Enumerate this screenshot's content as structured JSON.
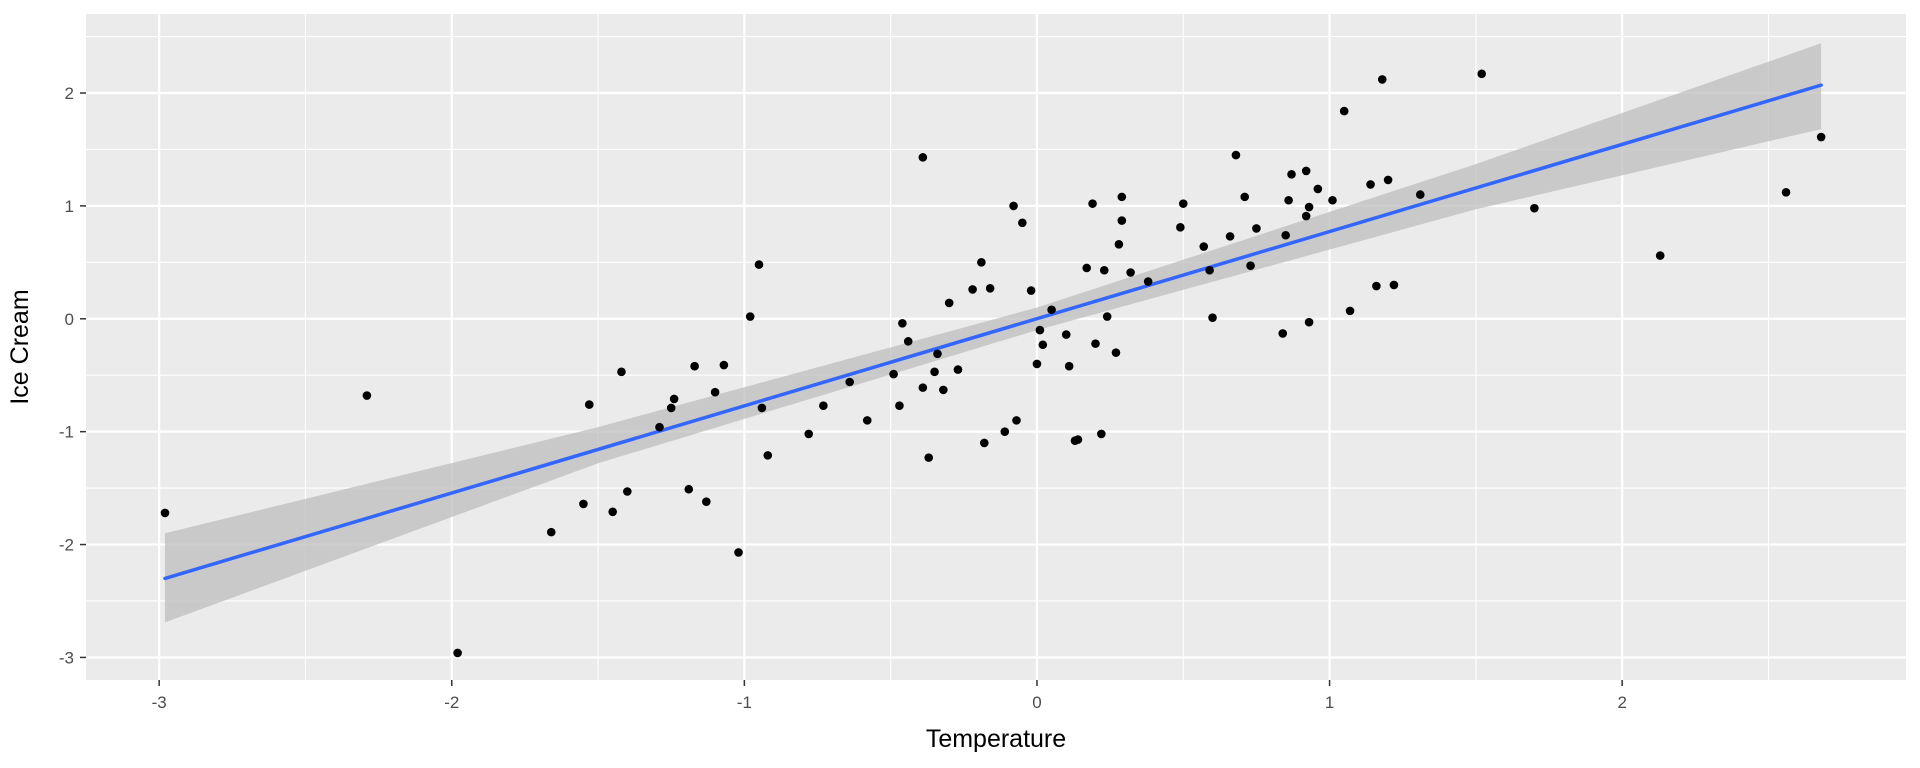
{
  "chart_data": {
    "type": "scatter",
    "title": "",
    "xlabel": "Temperature",
    "ylabel": "Ice Cream",
    "xlim": [
      -3.25,
      2.97
    ],
    "ylim": [
      -3.2,
      2.7
    ],
    "x_ticks": [
      -3,
      -2,
      -1,
      0,
      1,
      2
    ],
    "y_ticks": [
      -3,
      -2,
      -1,
      0,
      1,
      2
    ],
    "x_tick_labels": [
      "-3",
      "-2",
      "-1",
      "0",
      "1",
      "2"
    ],
    "y_tick_labels": [
      "-3",
      "-2",
      "-1",
      "0",
      "1",
      "2"
    ],
    "grid": true,
    "legend": "none",
    "colors": {
      "panel_background": "#ebebeb",
      "grid": "#ffffff",
      "points": "#000000",
      "fit_line": "#3366ff",
      "confidence_band": "#bdbdbd"
    },
    "fit": {
      "method": "linear",
      "x": [
        -2.98,
        2.68
      ],
      "y": [
        -2.3,
        2.07
      ],
      "band": [
        {
          "x": -2.98,
          "lower": -2.69,
          "upper": -1.9
        },
        {
          "x": -1.5,
          "lower": -1.28,
          "upper": -0.96
        },
        {
          "x": 0.0,
          "lower": -0.1,
          "upper": 0.1
        },
        {
          "x": 1.5,
          "lower": 0.97,
          "upper": 1.37
        },
        {
          "x": 2.68,
          "lower": 1.68,
          "upper": 2.44
        }
      ]
    },
    "points": [
      {
        "x": -2.98,
        "y": -1.72
      },
      {
        "x": -2.29,
        "y": -0.68
      },
      {
        "x": -1.98,
        "y": -2.96
      },
      {
        "x": -1.66,
        "y": -1.89
      },
      {
        "x": -1.55,
        "y": -1.64
      },
      {
        "x": -1.53,
        "y": -0.76
      },
      {
        "x": -1.45,
        "y": -1.71
      },
      {
        "x": -1.42,
        "y": -0.47
      },
      {
        "x": -1.4,
        "y": -1.53
      },
      {
        "x": -1.29,
        "y": -0.96
      },
      {
        "x": -1.25,
        "y": -0.79
      },
      {
        "x": -1.24,
        "y": -0.71
      },
      {
        "x": -1.19,
        "y": -1.51
      },
      {
        "x": -1.17,
        "y": -0.42
      },
      {
        "x": -1.13,
        "y": -1.62
      },
      {
        "x": -1.1,
        "y": -0.65
      },
      {
        "x": -1.07,
        "y": -0.41
      },
      {
        "x": -1.02,
        "y": -2.07
      },
      {
        "x": -0.98,
        "y": 0.02
      },
      {
        "x": -0.95,
        "y": 0.48
      },
      {
        "x": -0.94,
        "y": -0.79
      },
      {
        "x": -0.92,
        "y": -1.21
      },
      {
        "x": -0.78,
        "y": -1.02
      },
      {
        "x": -0.73,
        "y": -0.77
      },
      {
        "x": -0.64,
        "y": -0.56
      },
      {
        "x": -0.58,
        "y": -0.9
      },
      {
        "x": -0.49,
        "y": -0.49
      },
      {
        "x": -0.47,
        "y": -0.77
      },
      {
        "x": -0.46,
        "y": -0.04
      },
      {
        "x": -0.44,
        "y": -0.2
      },
      {
        "x": -0.39,
        "y": 1.43
      },
      {
        "x": -0.39,
        "y": -0.61
      },
      {
        "x": -0.37,
        "y": -1.23
      },
      {
        "x": -0.35,
        "y": -0.47
      },
      {
        "x": -0.34,
        "y": -0.31
      },
      {
        "x": -0.32,
        "y": -0.63
      },
      {
        "x": -0.3,
        "y": 0.14
      },
      {
        "x": -0.27,
        "y": -0.45
      },
      {
        "x": -0.22,
        "y": 0.26
      },
      {
        "x": -0.19,
        "y": 0.5
      },
      {
        "x": -0.18,
        "y": -1.1
      },
      {
        "x": -0.16,
        "y": 0.27
      },
      {
        "x": -0.11,
        "y": -1.0
      },
      {
        "x": -0.08,
        "y": 1.0
      },
      {
        "x": -0.07,
        "y": -0.9
      },
      {
        "x": -0.05,
        "y": 0.85
      },
      {
        "x": -0.02,
        "y": 0.25
      },
      {
        "x": 0.0,
        "y": -0.4
      },
      {
        "x": 0.01,
        "y": -0.1
      },
      {
        "x": 0.02,
        "y": -0.23
      },
      {
        "x": 0.05,
        "y": 0.08
      },
      {
        "x": 0.1,
        "y": -0.14
      },
      {
        "x": 0.11,
        "y": -0.42
      },
      {
        "x": 0.13,
        "y": -1.08
      },
      {
        "x": 0.14,
        "y": -1.07
      },
      {
        "x": 0.17,
        "y": 0.45
      },
      {
        "x": 0.19,
        "y": 1.02
      },
      {
        "x": 0.2,
        "y": -0.22
      },
      {
        "x": 0.22,
        "y": -1.02
      },
      {
        "x": 0.23,
        "y": 0.43
      },
      {
        "x": 0.24,
        "y": 0.02
      },
      {
        "x": 0.27,
        "y": -0.3
      },
      {
        "x": 0.28,
        "y": 0.66
      },
      {
        "x": 0.29,
        "y": 0.87
      },
      {
        "x": 0.29,
        "y": 1.08
      },
      {
        "x": 0.32,
        "y": 0.41
      },
      {
        "x": 0.38,
        "y": 0.33
      },
      {
        "x": 0.49,
        "y": 0.81
      },
      {
        "x": 0.5,
        "y": 1.02
      },
      {
        "x": 0.57,
        "y": 0.64
      },
      {
        "x": 0.59,
        "y": 0.43
      },
      {
        "x": 0.6,
        "y": 0.01
      },
      {
        "x": 0.66,
        "y": 0.73
      },
      {
        "x": 0.68,
        "y": 1.45
      },
      {
        "x": 0.71,
        "y": 1.08
      },
      {
        "x": 0.73,
        "y": 0.47
      },
      {
        "x": 0.75,
        "y": 0.8
      },
      {
        "x": 0.84,
        "y": -0.13
      },
      {
        "x": 0.85,
        "y": 0.74
      },
      {
        "x": 0.86,
        "y": 1.05
      },
      {
        "x": 0.87,
        "y": 1.28
      },
      {
        "x": 0.92,
        "y": 1.31
      },
      {
        "x": 0.92,
        "y": 0.91
      },
      {
        "x": 0.93,
        "y": 0.99
      },
      {
        "x": 0.93,
        "y": -0.03
      },
      {
        "x": 0.96,
        "y": 1.15
      },
      {
        "x": 1.01,
        "y": 1.05
      },
      {
        "x": 1.05,
        "y": 1.84
      },
      {
        "x": 1.07,
        "y": 0.07
      },
      {
        "x": 1.14,
        "y": 1.19
      },
      {
        "x": 1.16,
        "y": 0.29
      },
      {
        "x": 1.18,
        "y": 2.12
      },
      {
        "x": 1.2,
        "y": 1.23
      },
      {
        "x": 1.22,
        "y": 0.3
      },
      {
        "x": 1.31,
        "y": 1.1
      },
      {
        "x": 1.52,
        "y": 2.17
      },
      {
        "x": 1.7,
        "y": 0.98
      },
      {
        "x": 2.13,
        "y": 0.56
      },
      {
        "x": 2.56,
        "y": 1.12
      },
      {
        "x": 2.68,
        "y": 1.61
      }
    ]
  }
}
